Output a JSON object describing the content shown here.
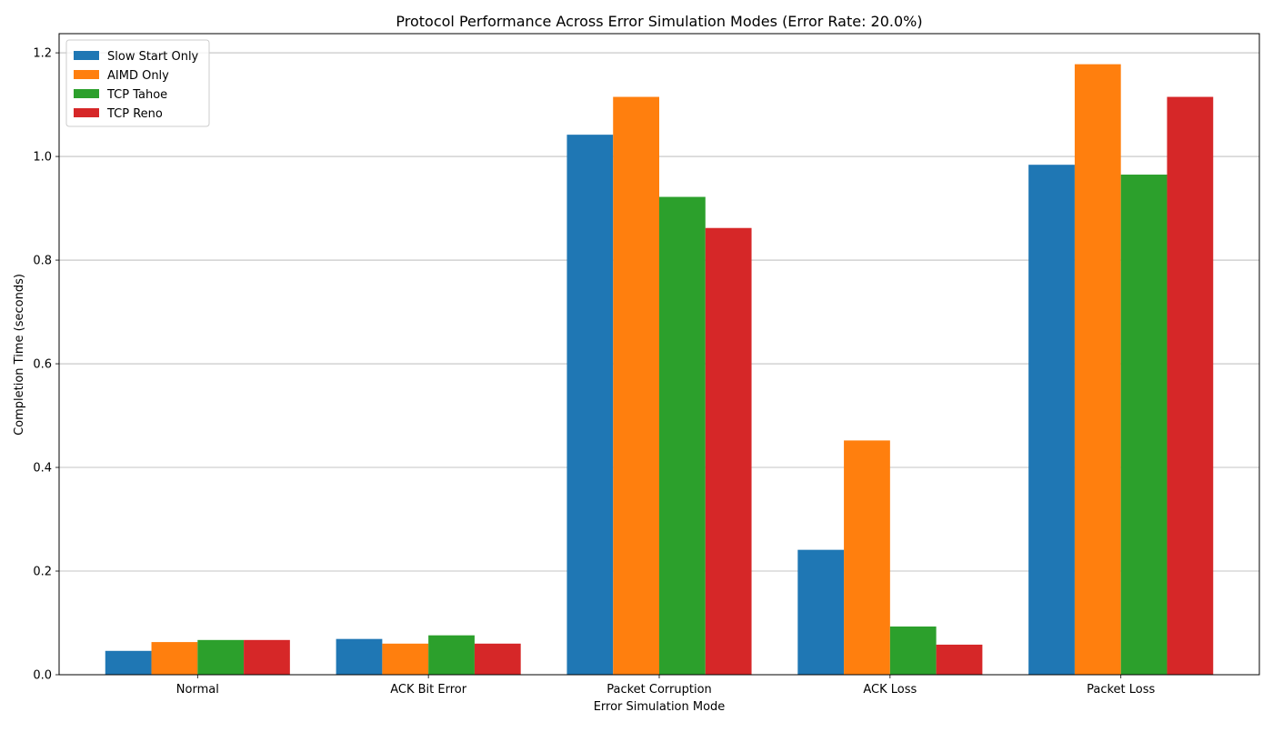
{
  "chart_data": {
    "type": "bar",
    "title": "Protocol Performance Across Error Simulation Modes (Error Rate: 20.0%)",
    "xlabel": "Error Simulation Mode",
    "ylabel": "Completion Time (seconds)",
    "categories": [
      "Normal",
      "ACK Bit Error",
      "Packet Corruption",
      "ACK Loss",
      "Packet Loss"
    ],
    "series": [
      {
        "name": "Slow Start Only",
        "color": "#1f77b4",
        "values": [
          0.046,
          0.069,
          1.042,
          0.241,
          0.984
        ]
      },
      {
        "name": "AIMD Only",
        "color": "#ff7f0e",
        "values": [
          0.063,
          0.06,
          1.115,
          0.452,
          1.178
        ]
      },
      {
        "name": "TCP Tahoe",
        "color": "#2ca02c",
        "values": [
          0.067,
          0.076,
          0.922,
          0.093,
          0.965
        ]
      },
      {
        "name": "TCP Reno",
        "color": "#d62728",
        "values": [
          0.067,
          0.06,
          0.862,
          0.058,
          1.115
        ]
      }
    ],
    "ylim": [
      0,
      1.237
    ],
    "yticks": [
      "0.0",
      "0.2",
      "0.4",
      "0.6",
      "0.8",
      "1.0",
      "1.2"
    ],
    "grid": "horizontal",
    "legend_position": "top-left"
  }
}
